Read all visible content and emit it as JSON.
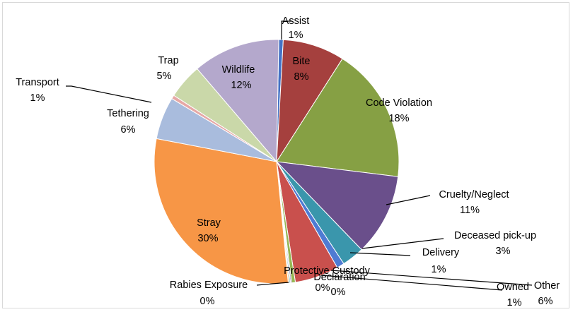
{
  "chart_data": {
    "type": "pie",
    "title": "",
    "start_angle_deg": 1,
    "slices": [
      {
        "label": "Assist",
        "pct_label": "1%",
        "value": 0.6,
        "color": "#4472C4"
      },
      {
        "label": "Bite",
        "pct_label": "8%",
        "value": 8.3,
        "color": "#A5403E"
      },
      {
        "label": "Code Violation",
        "pct_label": "18%",
        "value": 18.2,
        "color": "#86A044"
      },
      {
        "label": "Cruelty/Neglect",
        "pct_label": "11%",
        "value": 11.0,
        "color": "#6A4F8B"
      },
      {
        "label": "Deceased pick-up",
        "pct_label": "3%",
        "value": 3.0,
        "color": "#3A96AC"
      },
      {
        "label": "Delivery",
        "pct_label": "1%",
        "value": 1.0,
        "color": "#4F7BD3"
      },
      {
        "label": "Other",
        "pct_label": "6%",
        "value": 5.9,
        "color": "#C9504D"
      },
      {
        "label": "Owned",
        "pct_label": "1%",
        "value": 0.5,
        "color": "#95B654"
      },
      {
        "label": "Protective Custody",
        "pct_label": "0%",
        "value": 0.15,
        "color": "#8064A2"
      },
      {
        "label": "Declaration",
        "pct_label": "0%",
        "value": 0.15,
        "color": "#4BACC6"
      },
      {
        "label": "Rabies Exposure",
        "pct_label": "0%",
        "value": 0.15,
        "color": "#F7B267"
      },
      {
        "label": "Stray",
        "pct_label": "30%",
        "value": 30.0,
        "color": "#F79646"
      },
      {
        "label": "Tethering",
        "pct_label": "6%",
        "value": 5.7,
        "color": "#A9BCDD"
      },
      {
        "label": "Transport",
        "pct_label": "1%",
        "value": 0.5,
        "color": "#E6A8A6"
      },
      {
        "label": "Trap",
        "pct_label": "5%",
        "value": 4.7,
        "color": "#CAD8A9"
      },
      {
        "label": "Wildlife",
        "pct_label": "12%",
        "value": 11.7,
        "color": "#B4A8CC"
      }
    ]
  }
}
